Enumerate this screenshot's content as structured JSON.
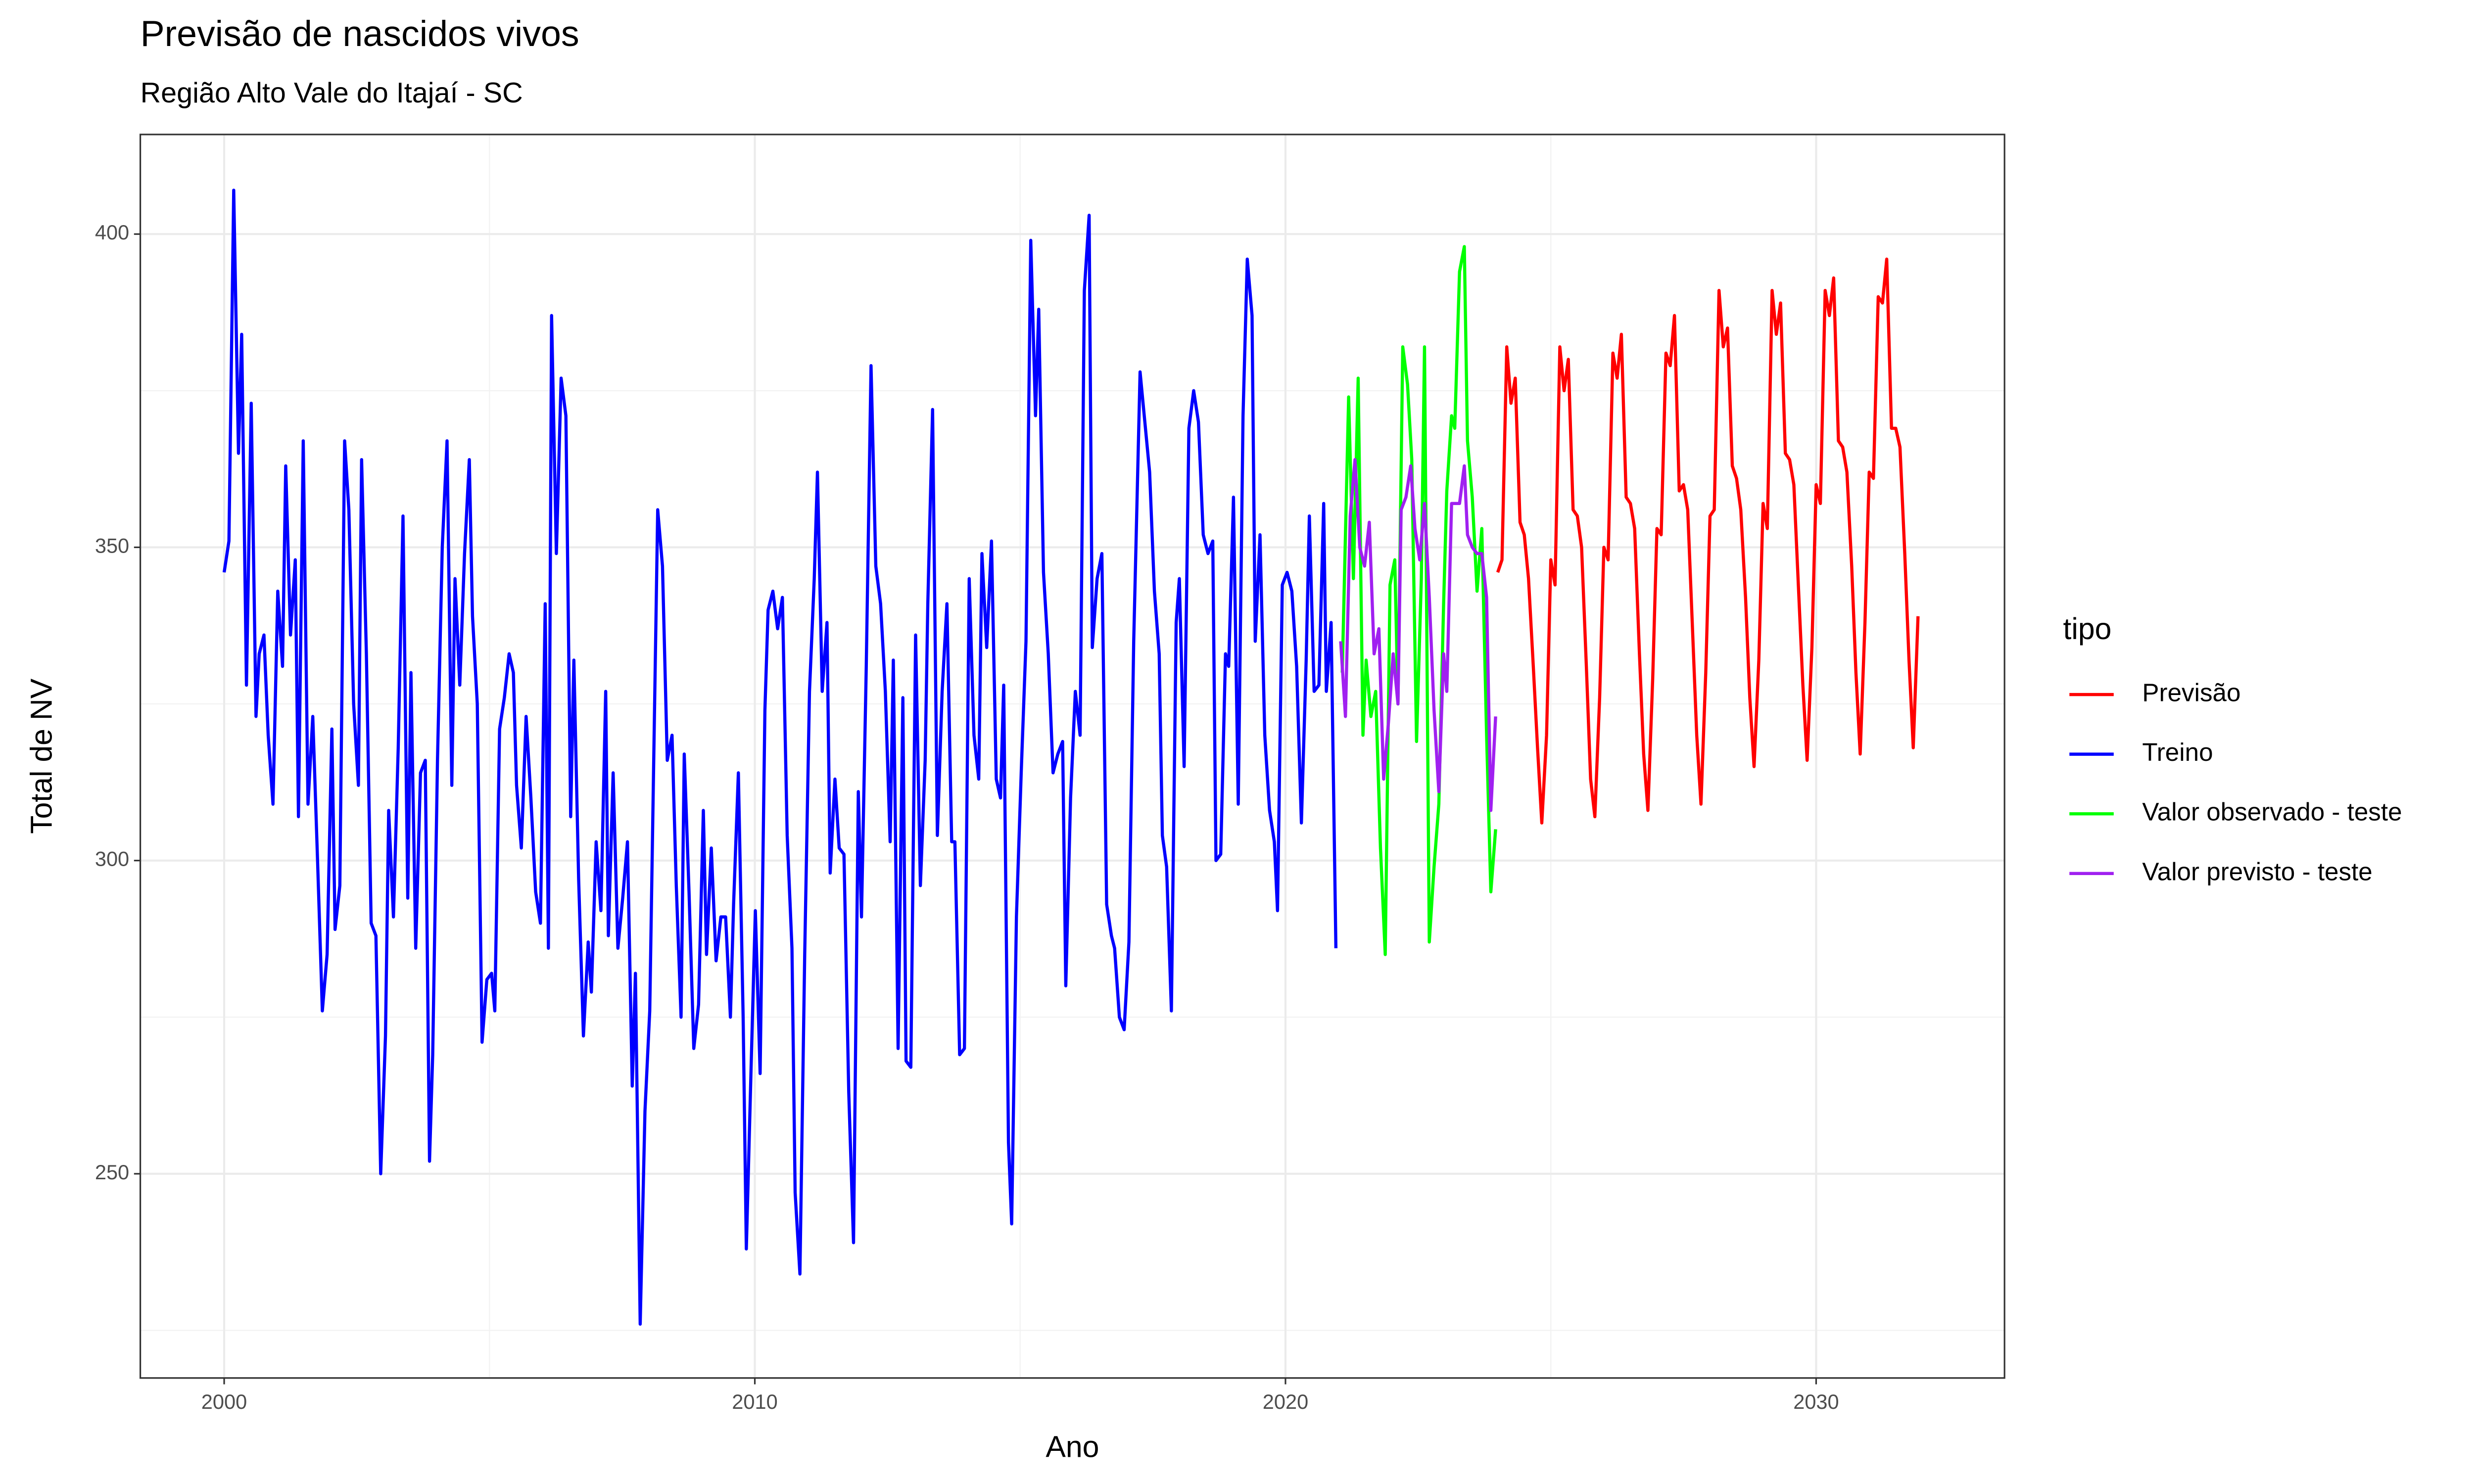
{
  "chart_data": {
    "type": "line",
    "title": "Previsão de nascidos vivos",
    "subtitle": "Região Alto Vale do Itajaí - SC",
    "x_label": "Ano",
    "y_label": "Total de NV",
    "legend_title": "tipo",
    "legend_position": "right",
    "xlim": [
      1998.42,
      2033.55
    ],
    "ylim": [
      217.4,
      415.9
    ],
    "xticks": [
      2000,
      2010,
      2020,
      2030
    ],
    "yticks": [
      250,
      300,
      350,
      400
    ],
    "xminor": [
      2005,
      2015,
      2025
    ],
    "yminor": [
      225,
      275,
      325,
      375
    ],
    "grid": true,
    "series": [
      {
        "name": "Previsão",
        "color": "#ff0000",
        "x": [
          2024.0,
          2024.08,
          2024.17,
          2024.25,
          2024.33,
          2024.42,
          2024.5,
          2024.58,
          2024.67,
          2024.75,
          2024.83,
          2024.92,
          2025.0,
          2025.08,
          2025.17,
          2025.25,
          2025.33,
          2025.42,
          2025.5,
          2025.58,
          2025.67,
          2025.75,
          2025.83,
          2025.92,
          2026.0,
          2026.08,
          2026.17,
          2026.25,
          2026.33,
          2026.42,
          2026.5,
          2026.58,
          2026.67,
          2026.75,
          2026.83,
          2026.92,
          2027.0,
          2027.08,
          2027.17,
          2027.25,
          2027.33,
          2027.42,
          2027.5,
          2027.58,
          2027.67,
          2027.75,
          2027.83,
          2027.92,
          2028.0,
          2028.08,
          2028.17,
          2028.25,
          2028.33,
          2028.42,
          2028.5,
          2028.58,
          2028.67,
          2028.75,
          2028.83,
          2028.92,
          2029.0,
          2029.08,
          2029.17,
          2029.25,
          2029.33,
          2029.42,
          2029.5,
          2029.58,
          2029.67,
          2029.75,
          2029.83,
          2029.92,
          2030.0,
          2030.08,
          2030.17,
          2030.25,
          2030.33,
          2030.42,
          2030.5,
          2030.58,
          2030.67,
          2030.75,
          2030.83,
          2030.92,
          2031.0,
          2031.08,
          2031.17,
          2031.25,
          2031.33,
          2031.42,
          2031.5,
          2031.58,
          2031.67,
          2031.75,
          2031.83,
          2031.92
        ],
        "values": [
          346,
          348,
          382,
          373,
          377,
          354,
          352,
          345,
          331,
          318,
          306,
          320,
          348,
          344,
          382,
          375,
          380,
          356,
          355,
          350,
          331,
          313,
          307,
          326,
          350,
          348,
          381,
          377,
          384,
          358,
          357,
          353,
          333,
          317,
          308,
          329,
          353,
          352,
          381,
          379,
          387,
          359,
          360,
          356,
          337,
          320,
          309,
          330,
          355,
          356,
          391,
          382,
          385,
          363,
          361,
          356,
          342,
          326,
          315,
          332,
          357,
          353,
          391,
          384,
          389,
          365,
          364,
          360,
          343,
          328,
          316,
          334,
          360,
          357,
          391,
          387,
          393,
          367,
          366,
          362,
          347,
          330,
          317,
          338,
          362,
          361,
          390,
          389,
          396,
          369,
          369,
          366,
          349,
          332,
          318,
          339
        ]
      },
      {
        "name": "Treino",
        "color": "#0000ff",
        "x": [
          2000.0,
          2000.09,
          2000.18,
          2000.27,
          2000.33,
          2000.42,
          2000.51,
          2000.6,
          2000.66,
          2000.75,
          2000.83,
          2000.92,
          2001.01,
          2001.1,
          2001.16,
          2001.25,
          2001.34,
          2001.4,
          2001.49,
          2001.58,
          2001.67,
          2001.76,
          2001.85,
          2001.94,
          2002.03,
          2002.09,
          2002.18,
          2002.27,
          2002.35,
          2002.44,
          2002.53,
          2002.59,
          2002.68,
          2002.77,
          2002.86,
          2002.95,
          2003.04,
          2003.1,
          2003.19,
          2003.28,
          2003.37,
          2003.46,
          2003.52,
          2003.61,
          2003.7,
          2003.79,
          2003.87,
          2003.93,
          2004.02,
          2004.11,
          2004.2,
          2004.29,
          2004.35,
          2004.44,
          2004.53,
          2004.62,
          2004.68,
          2004.77,
          2004.86,
          2004.95,
          2005.04,
          2005.1,
          2005.19,
          2005.28,
          2005.37,
          2005.45,
          2005.51,
          2005.6,
          2005.69,
          2005.78,
          2005.87,
          2005.96,
          2006.05,
          2006.11,
          2006.17,
          2006.26,
          2006.35,
          2006.44,
          2006.53,
          2006.59,
          2006.68,
          2006.77,
          2006.86,
          2006.92,
          2007.01,
          2007.1,
          2007.19,
          2007.24,
          2007.33,
          2007.42,
          2007.51,
          2007.6,
          2007.69,
          2007.75,
          2007.84,
          2007.93,
          2008.02,
          2008.11,
          2008.17,
          2008.26,
          2008.35,
          2008.44,
          2008.52,
          2008.61,
          2008.67,
          2008.76,
          2008.85,
          2008.94,
          2009.03,
          2009.09,
          2009.18,
          2009.27,
          2009.36,
          2009.45,
          2009.54,
          2009.6,
          2009.69,
          2009.78,
          2009.84,
          2009.93,
          2010.01,
          2010.1,
          2010.19,
          2010.25,
          2010.34,
          2010.43,
          2010.52,
          2010.61,
          2010.7,
          2010.76,
          2010.85,
          2010.94,
          2011.03,
          2011.12,
          2011.18,
          2011.27,
          2011.36,
          2011.42,
          2011.51,
          2011.59,
          2011.68,
          2011.77,
          2011.86,
          2011.95,
          2012.01,
          2012.1,
          2012.19,
          2012.28,
          2012.37,
          2012.46,
          2012.55,
          2012.61,
          2012.7,
          2012.79,
          2012.85,
          2012.94,
          2013.03,
          2013.12,
          2013.21,
          2013.26,
          2013.35,
          2013.44,
          2013.53,
          2013.62,
          2013.71,
          2013.77,
          2013.86,
          2013.95,
          2014.04,
          2014.13,
          2014.22,
          2014.28,
          2014.37,
          2014.46,
          2014.55,
          2014.63,
          2014.69,
          2014.78,
          2014.84,
          2014.93,
          2015.02,
          2015.11,
          2015.2,
          2015.29,
          2015.35,
          2015.44,
          2015.53,
          2015.62,
          2015.71,
          2015.8,
          2015.86,
          2015.95,
          2016.04,
          2016.13,
          2016.21,
          2016.3,
          2016.36,
          2016.45,
          2016.54,
          2016.63,
          2016.72,
          2016.78,
          2016.87,
          2016.96,
          2017.05,
          2017.14,
          2017.26,
          2017.35,
          2017.44,
          2017.53,
          2017.62,
          2017.68,
          2017.76,
          2017.85,
          2017.94,
          2018.0,
          2018.09,
          2018.18,
          2018.27,
          2018.36,
          2018.45,
          2018.54,
          2018.63,
          2018.69,
          2018.78,
          2018.87,
          2018.93,
          2019.02,
          2019.11,
          2019.2,
          2019.28,
          2019.37,
          2019.43,
          2019.52,
          2019.61,
          2019.7,
          2019.79,
          2019.85,
          2019.94,
          2020.03,
          2020.12,
          2020.21,
          2020.3,
          2020.39,
          2020.45,
          2020.54,
          2020.63,
          2020.72,
          2020.77,
          2020.86,
          2020.95
        ],
        "values": [
          346,
          351,
          407,
          365,
          384,
          328,
          373,
          323,
          333,
          336,
          320,
          309,
          343,
          331,
          363,
          336,
          348,
          307,
          367,
          309,
          323,
          300,
          276,
          285,
          321,
          289,
          296,
          367,
          356,
          325,
          312,
          364,
          333,
          290,
          288,
          250,
          272,
          308,
          291,
          318,
          355,
          294,
          330,
          286,
          314,
          316,
          252,
          269,
          316,
          350,
          367,
          312,
          345,
          328,
          349,
          364,
          339,
          325,
          271,
          281,
          282,
          276,
          321,
          326,
          333,
          330,
          312,
          302,
          323,
          310,
          295,
          290,
          341,
          286,
          387,
          349,
          377,
          371,
          307,
          332,
          297,
          272,
          287,
          279,
          303,
          292,
          327,
          288,
          314,
          286,
          294,
          303,
          264,
          282,
          226,
          260,
          276,
          324,
          356,
          347,
          316,
          320,
          296,
          275,
          317,
          295,
          270,
          277,
          308,
          285,
          302,
          284,
          291,
          291,
          275,
          293,
          314,
          275,
          238,
          267,
          292,
          266,
          324,
          340,
          343,
          337,
          342,
          304,
          286,
          247,
          234,
          285,
          327,
          345,
          362,
          327,
          338,
          298,
          313,
          302,
          301,
          263,
          239,
          311,
          291,
          331,
          379,
          347,
          341,
          327,
          303,
          332,
          270,
          326,
          268,
          267,
          336,
          296,
          316,
          341,
          372,
          304,
          327,
          341,
          303,
          303,
          269,
          270,
          345,
          320,
          313,
          349,
          334,
          351,
          313,
          310,
          328,
          255,
          242,
          291,
          314,
          335,
          399,
          371,
          388,
          346,
          333,
          314,
          317,
          319,
          280,
          310,
          327,
          320,
          391,
          403,
          334,
          345,
          349,
          293,
          288,
          286,
          275,
          273,
          287,
          335,
          378,
          370,
          362,
          343,
          333,
          304,
          299,
          276,
          338,
          345,
          315,
          369,
          375,
          370,
          352,
          349,
          351,
          300,
          301,
          333,
          331,
          358,
          309,
          371,
          396,
          387,
          335,
          352,
          320,
          308,
          303,
          292,
          344,
          346,
          343,
          331,
          306,
          332,
          355,
          327,
          328,
          357,
          327,
          338,
          286
        ]
      },
      {
        "name": "Valor observado - teste",
        "color": "#00ff00",
        "x": [
          2021.07,
          2021.19,
          2021.28,
          2021.37,
          2021.46,
          2021.52,
          2021.61,
          2021.7,
          2021.79,
          2021.88,
          2021.97,
          2022.06,
          2022.12,
          2022.21,
          2022.3,
          2022.38,
          2022.47,
          2022.56,
          2022.62,
          2022.71,
          2022.8,
          2022.89,
          2022.98,
          2023.04,
          2023.13,
          2023.19,
          2023.28,
          2023.37,
          2023.43,
          2023.52,
          2023.61,
          2023.7,
          2023.79,
          2023.87,
          2023.96
        ],
        "values": [
          330,
          374,
          345,
          377,
          320,
          332,
          323,
          327,
          302,
          285,
          344,
          348,
          325,
          382,
          376,
          364,
          319,
          345,
          382,
          287,
          299,
          309,
          341,
          359,
          371,
          369,
          394,
          398,
          367,
          358,
          343,
          353,
          320,
          295,
          305
        ]
      },
      {
        "name": "Valor previsto - teste",
        "color": "#a020f0",
        "x": [
          2021.04,
          2021.13,
          2021.22,
          2021.31,
          2021.4,
          2021.49,
          2021.58,
          2021.67,
          2021.76,
          2021.85,
          2021.94,
          2022.03,
          2022.12,
          2022.18,
          2022.27,
          2022.36,
          2022.44,
          2022.53,
          2022.62,
          2022.71,
          2022.8,
          2022.89,
          2022.98,
          2023.04,
          2023.13,
          2023.19,
          2023.28,
          2023.37,
          2023.43,
          2023.52,
          2023.61,
          2023.7,
          2023.79,
          2023.87,
          2023.96
        ],
        "values": [
          335,
          323,
          355,
          364,
          350,
          347,
          354,
          333,
          337,
          313,
          322,
          333,
          325,
          356,
          358,
          363,
          353,
          348,
          357,
          342,
          324,
          311,
          333,
          327,
          357,
          357,
          357,
          363,
          352,
          350,
          349,
          349,
          342,
          308,
          323
        ]
      }
    ]
  }
}
